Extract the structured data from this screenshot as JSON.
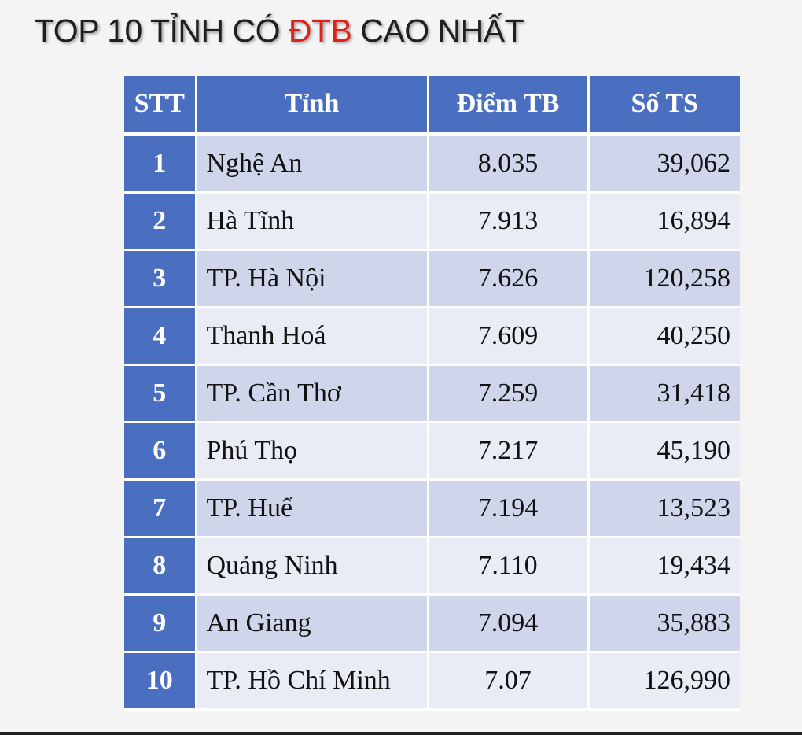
{
  "title": {
    "prefix": "TOP 10 TỈNH CÓ ",
    "highlight": "ĐTB",
    "suffix": " CAO NHẤT"
  },
  "table": {
    "headers": [
      "STT",
      "Tỉnh",
      "Điểm TB",
      "Số TS"
    ],
    "rows": [
      {
        "stt": "1",
        "tinh": "Nghệ An",
        "diem": "8.035",
        "so_ts": "39,062"
      },
      {
        "stt": "2",
        "tinh": "Hà Tĩnh",
        "diem": "7.913",
        "so_ts": "16,894"
      },
      {
        "stt": "3",
        "tinh": "TP. Hà Nội",
        "diem": "7.626",
        "so_ts": "120,258"
      },
      {
        "stt": "4",
        "tinh": "Thanh Hoá",
        "diem": "7.609",
        "so_ts": "40,250"
      },
      {
        "stt": "5",
        "tinh": "TP. Cần Thơ",
        "diem": "7.259",
        "so_ts": "31,418"
      },
      {
        "stt": "6",
        "tinh": "Phú Thọ",
        "diem": "7.217",
        "so_ts": "45,190"
      },
      {
        "stt": "7",
        "tinh": "TP. Huế",
        "diem": "7.194",
        "so_ts": "13,523"
      },
      {
        "stt": "8",
        "tinh": "Quảng Ninh",
        "diem": "7.110",
        "so_ts": "19,434"
      },
      {
        "stt": "9",
        "tinh": "An Giang",
        "diem": "7.094",
        "so_ts": "35,883"
      },
      {
        "stt": "10",
        "tinh": "TP. Hồ Chí Minh",
        "diem": "7.07",
        "so_ts": "126,990"
      }
    ]
  },
  "colors": {
    "header_bg": "#4a6fc0",
    "row_odd_bg": "#cfd5ea",
    "row_even_bg": "#e9ebf5",
    "title_highlight": "#e0221c",
    "page_bg": "#f4f4f4"
  }
}
